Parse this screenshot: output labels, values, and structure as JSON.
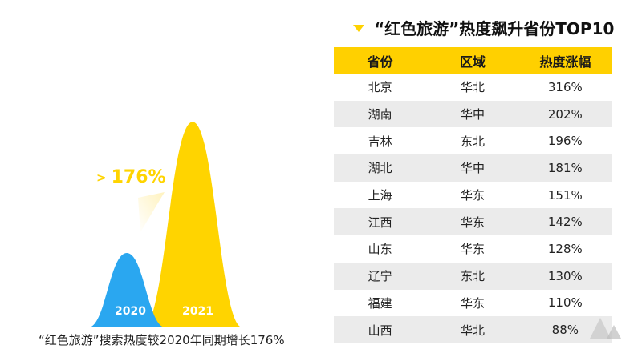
{
  "chart_data": [
    {
      "type": "area",
      "categories": [
        "2020",
        "2021"
      ],
      "values": [
        1,
        2.76
      ],
      "annotation": "176%",
      "annotation_prefix": ">",
      "caption": "“红色旅游”搜索热度较2020年同期增长176%",
      "colors": {
        "2020": "#2aa7f0",
        "2021": "#ffd400"
      }
    },
    {
      "type": "table",
      "title": "“红色旅游”热度飙升省份TOP10",
      "columns": [
        "省份",
        "区域",
        "热度涨幅"
      ],
      "rows": [
        [
          "北京",
          "华北",
          "316%"
        ],
        [
          "湖南",
          "华中",
          "202%"
        ],
        [
          "吉林",
          "东北",
          "196%"
        ],
        [
          "湖北",
          "华中",
          "181%"
        ],
        [
          "上海",
          "华东",
          "151%"
        ],
        [
          "江西",
          "华东",
          "142%"
        ],
        [
          "山东",
          "华东",
          "128%"
        ],
        [
          "辽宁",
          "东北",
          "130%"
        ],
        [
          "福建",
          "华东",
          "110%"
        ],
        [
          "山西",
          "华北",
          "88%"
        ]
      ],
      "header_color": "#ffd000"
    }
  ]
}
